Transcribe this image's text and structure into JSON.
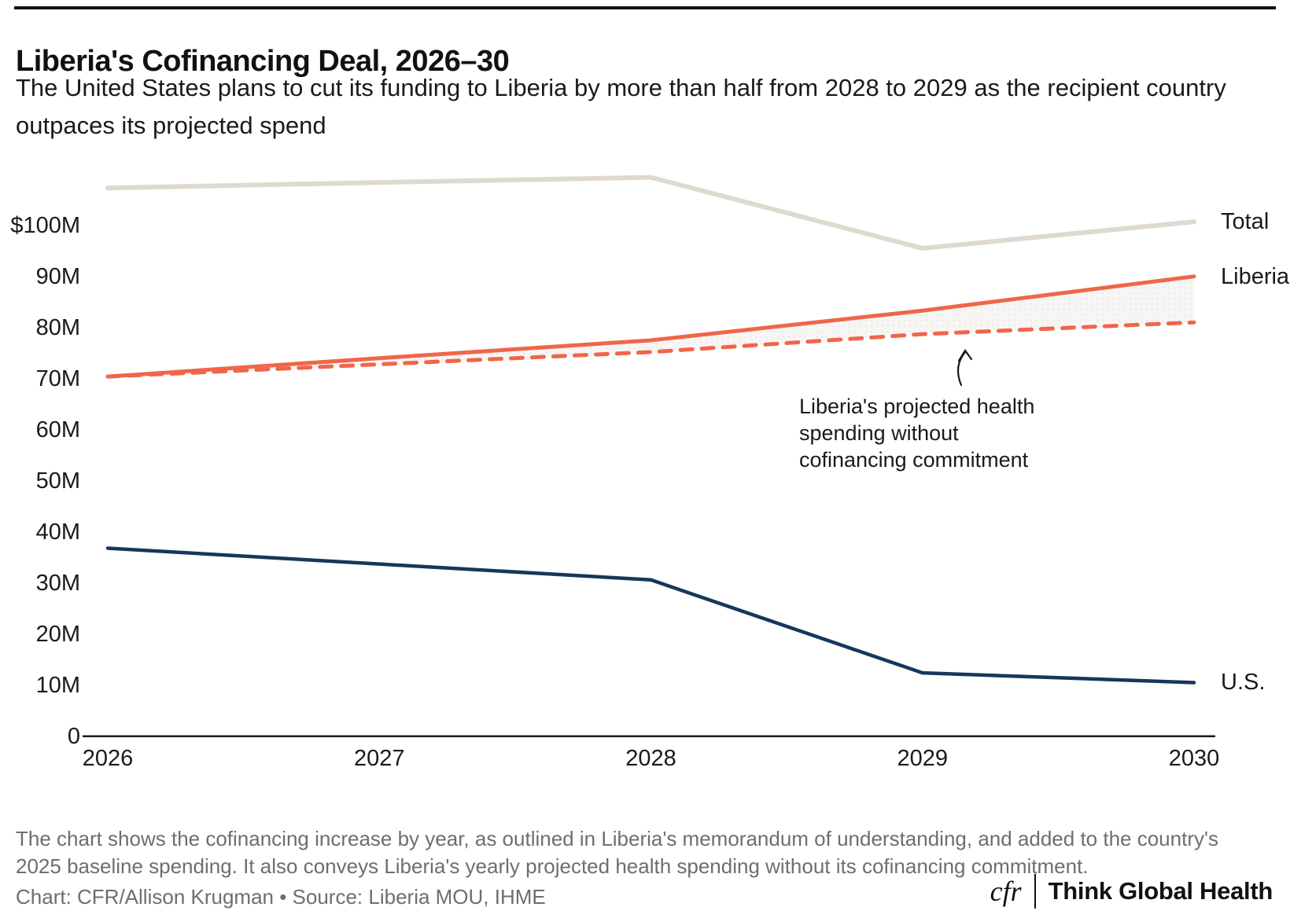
{
  "header": {
    "title": "Liberia's Cofinancing Deal, 2026–30",
    "subtitle": "The United States plans to cut its funding to Liberia by more than half from 2028 to 2029 as the recipient country outpaces its projected spend"
  },
  "chart_data": {
    "type": "line",
    "title": "Liberia's Cofinancing Deal, 2026–30",
    "x": [
      2026,
      2027,
      2028,
      2029,
      2030
    ],
    "x_ticks": [
      "2026",
      "2027",
      "2028",
      "2029",
      "2030"
    ],
    "y_ticks": [
      {
        "label": "$100M",
        "value": 100
      },
      {
        "label": "90M",
        "value": 90
      },
      {
        "label": "80M",
        "value": 80
      },
      {
        "label": "70M",
        "value": 70
      },
      {
        "label": "60M",
        "value": 60
      },
      {
        "label": "50M",
        "value": 50
      },
      {
        "label": "40M",
        "value": 40
      },
      {
        "label": "30M",
        "value": 30
      },
      {
        "label": "20M",
        "value": 20
      },
      {
        "label": "10M",
        "value": 10
      },
      {
        "label": "0",
        "value": 0
      }
    ],
    "ylim": [
      0,
      113
    ],
    "grid": false,
    "legend_position": "right-end-labels",
    "series": [
      {
        "name": "Total",
        "color": "#DFD9D0",
        "style": "solid",
        "width": 6,
        "values": [
          107.3,
          108.4,
          109.4,
          95.5,
          100.7
        ]
      },
      {
        "name": "Liberia",
        "color": "#F1654A",
        "style": "solid",
        "width": 5,
        "values": [
          70.4,
          74.0,
          77.5,
          83.3,
          90.0
        ]
      },
      {
        "name": "Liberia projected without cofinancing",
        "color": "#F1654A",
        "style": "dashed",
        "width": 5,
        "values": [
          70.4,
          72.8,
          75.2,
          78.7,
          81.0
        ]
      },
      {
        "name": "U.S.",
        "color": "#17365B",
        "style": "solid",
        "width": 4.5,
        "values": [
          36.8,
          33.7,
          30.6,
          12.4,
          10.5
        ]
      }
    ],
    "shaded_band_between_series": [
      1,
      2
    ],
    "end_labels": [
      {
        "label": "Total",
        "series": 0
      },
      {
        "label": "Liberia",
        "series": 1
      },
      {
        "label": "U.S.",
        "series": 3
      }
    ],
    "annotation": "Liberia's projected health spending without cofinancing commitment"
  },
  "footer": {
    "note": "The chart shows the cofinancing increase by year, as outlined in Liberia's memorandum of understanding, and added to the country's 2025 baseline spending. It also conveys Liberia's yearly projected health spending without its cofinancing commitment.",
    "credit": "Chart: CFR/Allison Krugman • Source: Liberia MOU, IHME",
    "logo_cfr": "cfr",
    "logo_tgh": "Think Global Health"
  }
}
